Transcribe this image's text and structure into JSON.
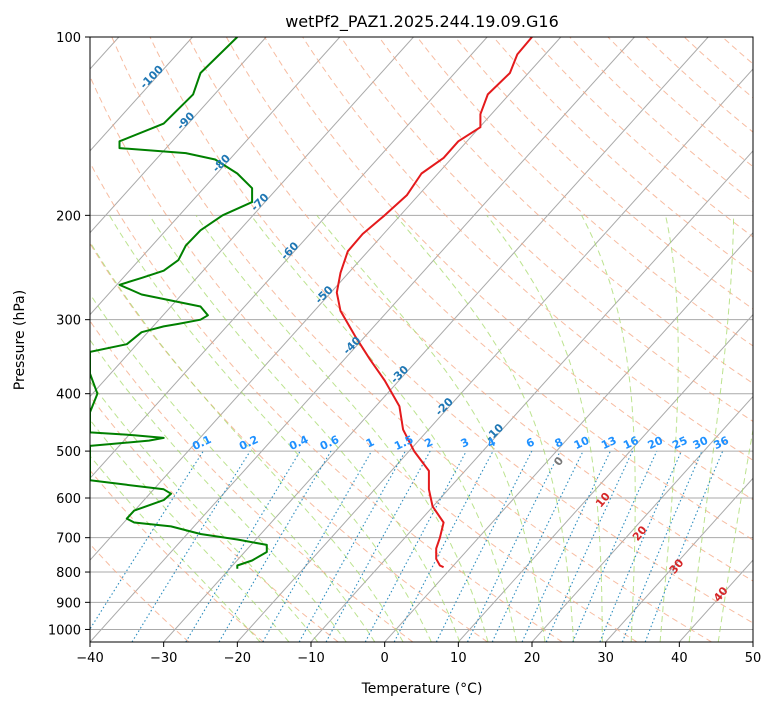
{
  "colors": {
    "temperature": "#e41a1c",
    "dewpoint": "#008000",
    "isotherm": "#aaaaaa",
    "dry_adiabat": "#f4a582",
    "moist_adiabat": "#a6d96a",
    "mixing_ratio": "#2b8cbe",
    "isotherm_label": "#1f77b4",
    "mixing_label": "#1e90ff",
    "moist_label": "#d62728"
  },
  "chart_data": {
    "type": "line",
    "title": "wetPf2_PAZ1.2025.244.19.09.G16",
    "xlabel": "Temperature (°C)",
    "ylabel": "Pressure (hPa)",
    "xlim": [
      -40,
      50
    ],
    "ylim": [
      1050,
      100
    ],
    "y_scale": "log",
    "x_ticks": [
      "−40",
      "−30",
      "−20",
      "−10",
      "0",
      "10",
      "20",
      "30",
      "40",
      "50"
    ],
    "y_ticks": [
      "1000",
      "900",
      "800",
      "700",
      "600",
      "500",
      "400",
      "300",
      "200",
      "100"
    ],
    "grid": true,
    "series": [
      {
        "key": "temperature",
        "p": [
          785,
          780,
          760,
          730,
          700,
          660,
          620,
          580,
          540,
          500,
          460,
          420,
          380,
          350,
          320,
          290,
          270,
          250,
          230,
          215,
          200,
          185,
          170,
          160,
          150,
          142,
          135,
          125,
          115,
          107,
          100
        ],
        "t": [
          8,
          7.5,
          7,
          7,
          7.5,
          8,
          6.5,
          6,
          6,
          4,
          2.5,
          2,
          0,
          -2,
          -4,
          -6,
          -6.5,
          -6,
          -5,
          -3,
          0,
          3,
          5,
          8,
          10,
          13,
          13,
          14,
          17,
          18,
          20
        ]
      },
      {
        "key": "dewpoint",
        "p": [
          790,
          780,
          765,
          740,
          720,
          705,
          690,
          670,
          660,
          650,
          630,
          605,
          590,
          580,
          570,
          560,
          550,
          540,
          520,
          500,
          490,
          480,
          475,
          470,
          465,
          455,
          430,
          400,
          370,
          340,
          330,
          315,
          308,
          305,
          300,
          295,
          285,
          272,
          262,
          255,
          248,
          238,
          225,
          212,
          200,
          190,
          180,
          170,
          161,
          157,
          154,
          150,
          140,
          125,
          115,
          100
        ],
        "t": [
          -20,
          -20,
          -18,
          -16,
          -16,
          -20,
          -25,
          -29,
          -34,
          -35,
          -34,
          -30,
          -29,
          -30,
          -35,
          -40,
          -40,
          -40,
          -40,
          -40,
          -40,
          -32,
          -30,
          -34,
          -40,
          -40,
          -40,
          -39,
          -40,
          -40,
          -35,
          -33,
          -30,
          -28,
          -25,
          -24,
          -25,
          -33,
          -36,
          -33,
          -30,
          -28,
          -27,
          -25,
          -22,
          -18,
          -18,
          -20,
          -23,
          -27,
          -36,
          -36,
          -30,
          -26,
          -25,
          -20
        ]
      }
    ],
    "isotherm_labels": [
      {
        "t": -100,
        "text": "-100"
      },
      {
        "t": -90,
        "text": "-90"
      },
      {
        "t": -80,
        "text": "-80"
      },
      {
        "t": -70,
        "text": "-70"
      },
      {
        "t": -60,
        "text": "-60"
      },
      {
        "t": -50,
        "text": "-50"
      },
      {
        "t": -40,
        "text": "-40"
      },
      {
        "t": -30,
        "text": "-30"
      },
      {
        "t": -20,
        "text": "-20"
      },
      {
        "t": -10,
        "text": "-10"
      }
    ],
    "mixing_ratio_labels": [
      "0.1",
      "0.2",
      "0.4",
      "0.6",
      "1",
      "1.5",
      "2",
      "3",
      "4",
      "6",
      "8",
      "10",
      "13",
      "16",
      "20",
      "25",
      "30",
      "36"
    ],
    "moist_adiabat_labels": [
      "0",
      "10",
      "20",
      "30",
      "40"
    ]
  }
}
